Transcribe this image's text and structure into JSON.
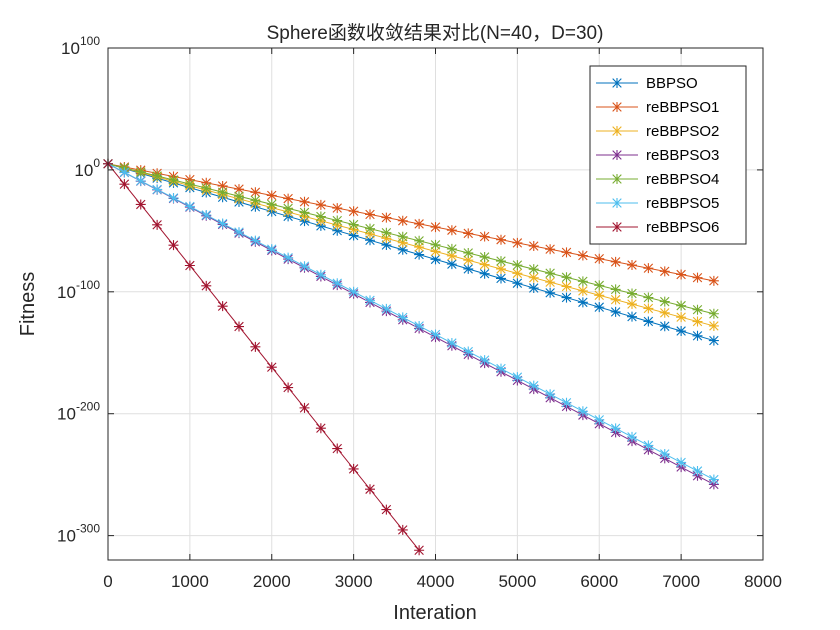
{
  "chart_data": {
    "type": "line",
    "title": "Sphere函数收敛结果对比(N=40，D=30)",
    "xlabel": "Interation",
    "ylabel": "Fitness",
    "y_scale": "log",
    "xlim": [
      0,
      8000
    ],
    "ylim_exponent": [
      -320,
      100
    ],
    "x_ticks": [
      "0",
      "1000",
      "2000",
      "3000",
      "4000",
      "5000",
      "6000",
      "7000",
      "8000"
    ],
    "y_ticks": [
      {
        "base": "10",
        "exp": "100"
      },
      {
        "base": "10",
        "exp": "0"
      },
      {
        "base": "10",
        "exp": "-100"
      },
      {
        "base": "10",
        "exp": "-200"
      },
      {
        "base": "10",
        "exp": "-300"
      }
    ],
    "grid": true,
    "legend_location": "top-right",
    "marker": "asterisk",
    "series": [
      {
        "name": "BBPSO",
        "color": "#0072BD",
        "x_end": 7400,
        "start_exp": 5,
        "end_exp": -140
      },
      {
        "name": "reBBPSO1",
        "color": "#D95319",
        "x_end": 7400,
        "start_exp": 5,
        "end_exp": -91
      },
      {
        "name": "reBBPSO2",
        "color": "#EDB120",
        "x_end": 7400,
        "start_exp": 5,
        "end_exp": -128
      },
      {
        "name": "reBBPSO3",
        "color": "#7E2F8E",
        "x_end": 7400,
        "start_exp": 5,
        "end_exp": -258
      },
      {
        "name": "reBBPSO4",
        "color": "#77AC30",
        "x_end": 7400,
        "start_exp": 5,
        "end_exp": -118
      },
      {
        "name": "reBBPSO5",
        "color": "#4DBEEE",
        "x_end": 7400,
        "start_exp": 5,
        "end_exp": -254
      },
      {
        "name": "reBBPSO6",
        "color": "#A2142F",
        "x_end": 3800,
        "start_exp": 5,
        "end_exp": -312
      }
    ]
  }
}
